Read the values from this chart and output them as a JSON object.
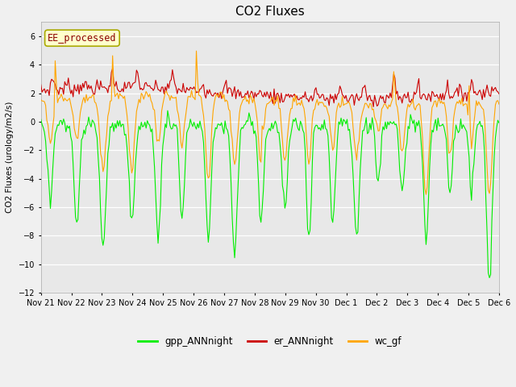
{
  "title": "CO2 Fluxes",
  "ylabel": "CO2 Fluxes (urology/m2/s)",
  "ylim": [
    -12,
    7
  ],
  "yticks": [
    -12,
    -10,
    -8,
    -6,
    -4,
    -2,
    0,
    2,
    4,
    6
  ],
  "background_color": "#f0f0f0",
  "plot_bg_color": "#e8e8e8",
  "legend_label": "EE_processed",
  "line_colors": {
    "gpp": "#00ee00",
    "er": "#cc0000",
    "wc": "#ffa500"
  },
  "legend_items": [
    {
      "label": "gpp_ANNnight",
      "color": "#00ee00"
    },
    {
      "label": "er_ANNnight",
      "color": "#cc0000"
    },
    {
      "label": "wc_gf",
      "color": "#ffa500"
    }
  ],
  "xtick_labels": [
    "Nov 21",
    "Nov 22",
    "Nov 23",
    "Nov 24",
    "Nov 25",
    "Nov 26",
    "Nov 27",
    "Nov 28",
    "Nov 29",
    "Nov 30",
    "Dec 1",
    "Dec 2",
    "Dec 3",
    "Dec 4",
    "Dec 5",
    "Dec 6"
  ],
  "figsize": [
    6.4,
    4.8
  ],
  "dpi": 100
}
